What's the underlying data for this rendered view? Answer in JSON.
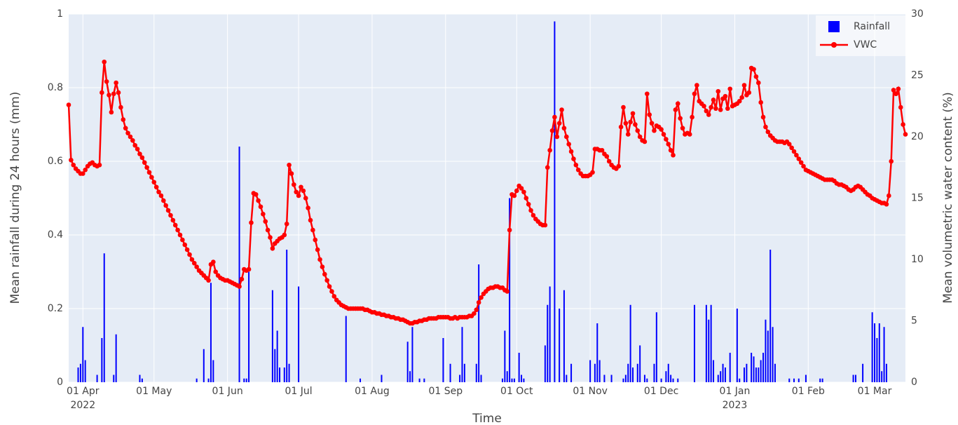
{
  "chart_data": {
    "type": "bar-line",
    "xlabel": "Time",
    "ylabel": "Mean rainfall during 24 hours (mm)",
    "y2label": "Mean volumetric water content (%)",
    "legend": "top right",
    "grid": true,
    "xlim": [
      "2022-03-26",
      "2023-03-14"
    ],
    "ylim": [
      0,
      1
    ],
    "yticks": [
      0,
      0.2,
      0.4,
      0.6,
      0.8,
      1
    ],
    "y2lim": [
      0,
      30
    ],
    "y2ticks": [
      0,
      5,
      10,
      15,
      20,
      25,
      30
    ],
    "xticks": [
      {
        "value": "2022-04-01",
        "label": "01 Apr",
        "year": "2022"
      },
      {
        "value": "2022-05-01",
        "label": "01 May"
      },
      {
        "value": "2022-06-01",
        "label": "01 Jun"
      },
      {
        "value": "2022-07-01",
        "label": "01 Jul"
      },
      {
        "value": "2022-08-01",
        "label": "01 Aug"
      },
      {
        "value": "2022-09-01",
        "label": "01 Sep"
      },
      {
        "value": "2022-10-01",
        "label": "01 Oct"
      },
      {
        "value": "2022-11-01",
        "label": "01 Nov"
      },
      {
        "value": "2022-12-01",
        "label": "01 Dec"
      },
      {
        "value": "2023-01-01",
        "label": "01 Jan",
        "year": "2023"
      },
      {
        "value": "2023-02-01",
        "label": "01 Feb"
      },
      {
        "value": "2023-03-01",
        "label": "01 Mar"
      }
    ],
    "x": [
      "2022-03-26",
      "2022-03-27",
      "2022-03-28",
      "2022-03-29",
      "2022-03-30",
      "2022-03-31",
      "2022-04-01",
      "2022-04-02",
      "2022-04-03",
      "2022-04-04",
      "2022-04-05",
      "2022-04-06",
      "2022-04-07",
      "2022-04-08",
      "2022-04-09",
      "2022-04-10",
      "2022-04-11",
      "2022-04-12",
      "2022-04-13",
      "2022-04-14",
      "2022-04-15",
      "2022-04-16",
      "2022-04-17",
      "2022-04-18",
      "2022-04-19",
      "2022-04-20",
      "2022-04-21",
      "2022-04-22",
      "2022-04-23",
      "2022-04-24",
      "2022-04-25",
      "2022-04-26",
      "2022-04-27",
      "2022-04-28",
      "2022-04-29",
      "2022-04-30",
      "2022-05-01",
      "2022-05-02",
      "2022-05-03",
      "2022-05-04",
      "2022-05-05",
      "2022-05-06",
      "2022-05-07",
      "2022-05-08",
      "2022-05-09",
      "2022-05-10",
      "2022-05-11",
      "2022-05-12",
      "2022-05-13",
      "2022-05-14",
      "2022-05-15",
      "2022-05-16",
      "2022-05-17",
      "2022-05-18",
      "2022-05-19",
      "2022-05-20",
      "2022-05-21",
      "2022-05-22",
      "2022-05-23",
      "2022-05-24",
      "2022-05-25",
      "2022-05-26",
      "2022-05-27",
      "2022-05-28",
      "2022-05-29",
      "2022-05-30",
      "2022-05-31",
      "2022-06-01",
      "2022-06-02",
      "2022-06-03",
      "2022-06-04",
      "2022-06-05",
      "2022-06-06",
      "2022-06-07",
      "2022-06-08",
      "2022-06-09",
      "2022-06-10",
      "2022-06-11",
      "2022-06-12",
      "2022-06-13",
      "2022-06-14",
      "2022-06-15",
      "2022-06-16",
      "2022-06-17",
      "2022-06-18",
      "2022-06-19",
      "2022-06-20",
      "2022-06-21",
      "2022-06-22",
      "2022-06-23",
      "2022-06-24",
      "2022-06-25",
      "2022-06-26",
      "2022-06-27",
      "2022-06-28",
      "2022-06-29",
      "2022-06-30",
      "2022-07-01",
      "2022-07-02",
      "2022-07-03",
      "2022-07-04",
      "2022-07-05",
      "2022-07-06",
      "2022-07-07",
      "2022-07-08",
      "2022-07-09",
      "2022-07-10",
      "2022-07-11",
      "2022-07-12",
      "2022-07-13",
      "2022-07-14",
      "2022-07-15",
      "2022-07-16",
      "2022-07-17",
      "2022-07-18",
      "2022-07-19",
      "2022-07-20",
      "2022-07-21",
      "2022-07-22",
      "2022-07-23",
      "2022-07-24",
      "2022-07-25",
      "2022-07-26",
      "2022-07-27",
      "2022-07-28",
      "2022-07-29",
      "2022-07-30",
      "2022-07-31",
      "2022-08-01",
      "2022-08-02",
      "2022-08-03",
      "2022-08-04",
      "2022-08-05",
      "2022-08-06",
      "2022-08-07",
      "2022-08-08",
      "2022-08-09",
      "2022-08-10",
      "2022-08-11",
      "2022-08-12",
      "2022-08-13",
      "2022-08-14",
      "2022-08-15",
      "2022-08-16",
      "2022-08-17",
      "2022-08-18",
      "2022-08-19",
      "2022-08-20",
      "2022-08-21",
      "2022-08-22",
      "2022-08-23",
      "2022-08-24",
      "2022-08-25",
      "2022-08-26",
      "2022-08-27",
      "2022-08-28",
      "2022-08-29",
      "2022-08-30",
      "2022-08-31",
      "2022-09-01",
      "2022-09-02",
      "2022-09-03",
      "2022-09-04",
      "2022-09-05",
      "2022-09-06",
      "2022-09-07",
      "2022-09-08",
      "2022-09-09",
      "2022-09-10",
      "2022-09-11",
      "2022-09-12",
      "2022-09-13",
      "2022-09-14",
      "2022-09-15",
      "2022-09-16",
      "2022-09-17",
      "2022-09-18",
      "2022-09-19",
      "2022-09-20",
      "2022-09-21",
      "2022-09-22",
      "2022-09-23",
      "2022-09-24",
      "2022-09-25",
      "2022-09-26",
      "2022-09-27",
      "2022-09-28",
      "2022-09-29",
      "2022-09-30",
      "2022-10-01",
      "2022-10-02",
      "2022-10-03",
      "2022-10-04",
      "2022-10-05",
      "2022-10-06",
      "2022-10-07",
      "2022-10-08",
      "2022-10-09",
      "2022-10-10",
      "2022-10-11",
      "2022-10-12",
      "2022-10-13",
      "2022-10-14",
      "2022-10-15",
      "2022-10-16",
      "2022-10-17",
      "2022-10-18",
      "2022-10-19",
      "2022-10-20",
      "2022-10-21",
      "2022-10-22",
      "2022-10-23",
      "2022-10-24",
      "2022-10-25",
      "2022-10-26",
      "2022-10-27",
      "2022-10-28",
      "2022-10-29",
      "2022-10-30",
      "2022-10-31",
      "2022-11-01",
      "2022-11-02",
      "2022-11-03",
      "2022-11-04",
      "2022-11-05",
      "2022-11-06",
      "2022-11-07",
      "2022-11-08",
      "2022-11-09",
      "2022-11-10",
      "2022-11-11",
      "2022-11-12",
      "2022-11-13",
      "2022-11-14",
      "2022-11-15",
      "2022-11-16",
      "2022-11-17",
      "2022-11-18",
      "2022-11-19",
      "2022-11-20",
      "2022-11-21",
      "2022-11-22",
      "2022-11-23",
      "2022-11-24",
      "2022-11-25",
      "2022-11-26",
      "2022-11-27",
      "2022-11-28",
      "2022-11-29",
      "2022-11-30",
      "2022-12-01",
      "2022-12-02",
      "2022-12-03",
      "2022-12-04",
      "2022-12-05",
      "2022-12-06",
      "2022-12-07",
      "2022-12-08",
      "2022-12-09",
      "2022-12-10",
      "2022-12-11",
      "2022-12-12",
      "2022-12-13",
      "2022-12-14",
      "2022-12-15",
      "2022-12-16",
      "2022-12-17",
      "2022-12-18",
      "2022-12-19",
      "2022-12-20",
      "2022-12-21",
      "2022-12-22",
      "2022-12-23",
      "2022-12-24",
      "2022-12-25",
      "2022-12-26",
      "2022-12-27",
      "2022-12-28",
      "2022-12-29",
      "2022-12-30",
      "2022-12-31",
      "2023-01-01",
      "2023-01-02",
      "2023-01-03",
      "2023-01-04",
      "2023-01-05",
      "2023-01-06",
      "2023-01-07",
      "2023-01-08",
      "2023-01-09",
      "2023-01-10",
      "2023-01-11",
      "2023-01-12",
      "2023-01-13",
      "2023-01-14",
      "2023-01-15",
      "2023-01-16",
      "2023-01-17",
      "2023-01-18",
      "2023-01-19",
      "2023-01-20",
      "2023-01-21",
      "2023-01-22",
      "2023-01-23",
      "2023-01-24",
      "2023-01-25",
      "2023-01-26",
      "2023-01-27",
      "2023-01-28",
      "2023-01-29",
      "2023-01-30",
      "2023-01-31",
      "2023-02-01",
      "2023-02-02",
      "2023-02-03",
      "2023-02-04",
      "2023-02-05",
      "2023-02-06",
      "2023-02-07",
      "2023-02-08",
      "2023-02-09",
      "2023-02-10",
      "2023-02-11",
      "2023-02-12",
      "2023-02-13",
      "2023-02-14",
      "2023-02-15",
      "2023-02-16",
      "2023-02-17",
      "2023-02-18",
      "2023-02-19",
      "2023-02-20",
      "2023-02-21",
      "2023-02-22",
      "2023-02-23",
      "2023-02-24",
      "2023-02-25",
      "2023-02-26",
      "2023-02-27",
      "2023-02-28",
      "2023-03-01",
      "2023-03-02",
      "2023-03-03",
      "2023-03-04",
      "2023-03-05",
      "2023-03-06",
      "2023-03-07",
      "2023-03-08",
      "2023-03-09",
      "2023-03-10",
      "2023-03-11",
      "2023-03-12",
      "2023-03-13",
      "2023-03-14"
    ],
    "series": [
      {
        "name": "Rainfall",
        "kind": "bar",
        "axis": "y",
        "color": "#0000ff",
        "values": [
          0,
          0,
          0,
          0,
          0.04,
          0.05,
          0.15,
          0.06,
          0,
          0,
          0,
          0,
          0.02,
          0,
          0.12,
          0.35,
          0,
          0,
          0,
          0.02,
          0.13,
          0,
          0,
          0,
          0,
          0,
          0,
          0,
          0,
          0,
          0.02,
          0.01,
          0,
          0,
          0,
          0,
          0,
          0,
          0,
          0,
          0,
          0,
          0,
          0,
          0,
          0,
          0,
          0,
          0,
          0,
          0,
          0,
          0,
          0,
          0.01,
          0,
          0,
          0.09,
          0,
          0.01,
          0.27,
          0.06,
          0,
          0,
          0,
          0,
          0,
          0,
          0,
          0,
          0,
          0,
          0.64,
          0,
          0.01,
          0.01,
          0.3,
          0,
          0,
          0,
          0,
          0,
          0,
          0,
          0,
          0,
          0.25,
          0.09,
          0.14,
          0.04,
          0,
          0.04,
          0.36,
          0.05,
          0,
          0,
          0,
          0.26,
          0,
          0,
          0,
          0,
          0,
          0,
          0,
          0,
          0,
          0,
          0,
          0,
          0,
          0,
          0,
          0,
          0,
          0,
          0,
          0.18,
          0,
          0,
          0,
          0,
          0,
          0.01,
          0,
          0,
          0,
          0,
          0,
          0,
          0,
          0,
          0.02,
          0,
          0,
          0,
          0,
          0,
          0,
          0,
          0,
          0,
          0,
          0.11,
          0.03,
          0.15,
          0,
          0,
          0.01,
          0,
          0.01,
          0,
          0,
          0,
          0,
          0,
          0,
          0,
          0.12,
          0,
          0,
          0.05,
          0,
          0,
          0,
          0.02,
          0.15,
          0.05,
          0,
          0,
          0,
          0,
          0.05,
          0.32,
          0.02,
          0,
          0,
          0,
          0,
          0,
          0,
          0,
          0,
          0.01,
          0.14,
          0.03,
          0.5,
          0.01,
          0.01,
          0,
          0.08,
          0.02,
          0.01,
          0,
          0,
          0,
          0,
          0,
          0,
          0,
          0,
          0.1,
          0.21,
          0.26,
          0,
          0.98,
          0,
          0.2,
          0,
          0.25,
          0.02,
          0,
          0.05,
          0,
          0,
          0,
          0,
          0,
          0,
          0,
          0.06,
          0,
          0.05,
          0.16,
          0.06,
          0,
          0.02,
          0,
          0,
          0.02,
          0,
          0,
          0,
          0,
          0.01,
          0.02,
          0.05,
          0.21,
          0.04,
          0,
          0.05,
          0.1,
          0,
          0.02,
          0.01,
          0,
          0,
          0.05,
          0.19,
          0,
          0.01,
          0,
          0.03,
          0.05,
          0.02,
          0.01,
          0,
          0.01,
          0,
          0,
          0,
          0,
          0,
          0,
          0.21,
          0,
          0,
          0,
          0,
          0.21,
          0.17,
          0.21,
          0.06,
          0,
          0.02,
          0.03,
          0.05,
          0.04,
          0,
          0.08,
          0,
          0,
          0.2,
          0.01,
          0,
          0.04,
          0.05,
          0,
          0.08,
          0.07,
          0.04,
          0.04,
          0.06,
          0.08,
          0.17,
          0.14,
          0.36,
          0.15,
          0.05,
          0,
          0,
          0,
          0,
          0,
          0.01,
          0,
          0.01,
          0,
          0.01,
          0,
          0,
          0.02,
          0,
          0,
          0,
          0,
          0,
          0.01,
          0.01,
          0,
          0,
          0,
          0,
          0,
          0,
          0,
          0,
          0,
          0,
          0,
          0,
          0.02,
          0.02,
          0,
          0,
          0.05,
          0,
          0,
          0,
          0.19,
          0.16,
          0.12,
          0.16,
          0.03,
          0.15,
          0.05,
          0,
          0,
          0,
          0,
          0,
          0,
          0,
          0
        ]
      },
      {
        "name": "VWC",
        "kind": "line",
        "axis": "y2",
        "color": "#ff0000",
        "values": [
          22.6,
          18.1,
          17.7,
          17.4,
          17.2,
          17.0,
          17.0,
          17.3,
          17.6,
          17.8,
          17.9,
          17.7,
          17.6,
          17.7,
          23.6,
          26.1,
          24.5,
          23.4,
          22.0,
          23.5,
          24.4,
          23.6,
          22.4,
          21.4,
          20.7,
          20.3,
          20.0,
          19.7,
          19.3,
          19.0,
          18.6,
          18.3,
          17.9,
          17.5,
          17.1,
          16.7,
          16.3,
          15.9,
          15.5,
          15.2,
          14.8,
          14.4,
          14.0,
          13.6,
          13.2,
          12.8,
          12.4,
          12.0,
          11.6,
          11.2,
          10.8,
          10.4,
          10.0,
          9.7,
          9.4,
          9.1,
          8.9,
          8.7,
          8.5,
          8.3,
          9.6,
          9.8,
          9.0,
          8.7,
          8.5,
          8.4,
          8.3,
          8.3,
          8.2,
          8.1,
          8.0,
          7.9,
          7.8,
          8.4,
          9.2,
          9.1,
          9.2,
          13.0,
          15.4,
          15.3,
          14.8,
          14.3,
          13.7,
          13.1,
          12.4,
          11.8,
          10.9,
          11.3,
          11.5,
          11.7,
          11.8,
          12.0,
          12.9,
          17.7,
          17.0,
          16.1,
          15.5,
          15.2,
          15.9,
          15.6,
          15.0,
          14.2,
          13.2,
          12.4,
          11.6,
          10.8,
          10.0,
          9.4,
          8.8,
          8.3,
          7.8,
          7.4,
          7.0,
          6.7,
          6.5,
          6.3,
          6.2,
          6.1,
          6.0,
          6.0,
          6.0,
          6.0,
          6.0,
          6.0,
          6.0,
          5.9,
          5.9,
          5.8,
          5.7,
          5.7,
          5.6,
          5.6,
          5.5,
          5.5,
          5.4,
          5.4,
          5.3,
          5.3,
          5.2,
          5.2,
          5.1,
          5.1,
          5.0,
          4.9,
          4.8,
          4.8,
          4.9,
          4.9,
          5.0,
          5.0,
          5.1,
          5.1,
          5.2,
          5.2,
          5.2,
          5.2,
          5.3,
          5.3,
          5.3,
          5.3,
          5.3,
          5.2,
          5.2,
          5.3,
          5.2,
          5.3,
          5.3,
          5.3,
          5.3,
          5.4,
          5.4,
          5.6,
          5.9,
          6.5,
          6.9,
          7.2,
          7.4,
          7.6,
          7.7,
          7.7,
          7.8,
          7.8,
          7.7,
          7.7,
          7.5,
          7.4,
          12.4,
          15.3,
          15.2,
          15.6,
          16.0,
          15.8,
          15.5,
          15.0,
          14.5,
          14.0,
          13.6,
          13.3,
          13.1,
          12.9,
          12.8,
          12.8,
          17.5,
          18.9,
          20.5,
          21.6,
          20.0,
          21.1,
          22.2,
          20.7,
          20.0,
          19.4,
          18.8,
          18.2,
          17.7,
          17.3,
          17.0,
          16.8,
          16.8,
          16.8,
          16.9,
          17.1,
          19.0,
          19.0,
          18.9,
          18.9,
          18.6,
          18.4,
          18.0,
          17.7,
          17.5,
          17.4,
          17.6,
          20.8,
          22.4,
          21.1,
          20.2,
          21.2,
          21.9,
          21.0,
          20.5,
          20.0,
          19.7,
          19.6,
          23.5,
          21.8,
          21.1,
          20.5,
          20.9,
          20.8,
          20.6,
          20.2,
          19.8,
          19.4,
          18.9,
          18.5,
          22.2,
          22.7,
          21.5,
          20.7,
          20.2,
          20.3,
          20.2,
          21.6,
          23.5,
          24.2,
          22.9,
          22.7,
          22.5,
          22.1,
          21.8,
          22.4,
          23.0,
          22.3,
          23.7,
          22.2,
          23.1,
          23.3,
          22.3,
          23.9,
          22.5,
          22.6,
          22.7,
          22.9,
          23.2,
          24.2,
          23.4,
          23.6,
          25.6,
          25.5,
          24.9,
          24.4,
          22.8,
          21.6,
          20.8,
          20.4,
          20.1,
          19.9,
          19.7,
          19.6,
          19.6,
          19.6,
          19.5,
          19.6,
          19.4,
          19.1,
          18.8,
          18.5,
          18.2,
          17.9,
          17.6,
          17.3,
          17.2,
          17.1,
          17.0,
          16.9,
          16.8,
          16.7,
          16.6,
          16.5,
          16.5,
          16.5,
          16.5,
          16.4,
          16.2,
          16.1,
          16.1,
          16.0,
          15.9,
          15.7,
          15.6,
          15.7,
          15.9,
          16.0,
          15.9,
          15.7,
          15.5,
          15.3,
          15.2,
          15.0,
          14.9,
          14.8,
          14.7,
          14.6,
          14.6,
          14.5,
          15.2,
          18.0,
          23.8,
          23.5,
          23.9,
          22.4,
          21.0,
          20.2
        ]
      }
    ]
  }
}
